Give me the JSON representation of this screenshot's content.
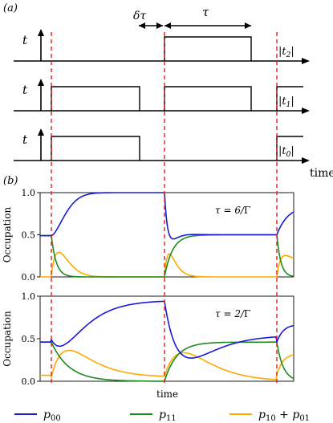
{
  "chart_data": [
    {
      "type": "line",
      "panel_label": "(a)",
      "description_text": "pulse timing diagram",
      "annotations": {
        "delta_tau": "δτ",
        "tau": "τ"
      },
      "xlabel": "time",
      "rows": [
        {
          "axis_letter": "t",
          "label": "|t2|",
          "label_main": "|t",
          "label_sub": "2",
          "label_end": "|",
          "pulses": [
            [
              0.0,
              0.0
            ]
          ],
          "high_start": 205,
          "high_end": 313,
          "marker_start": false
        },
        {
          "axis_letter": "t",
          "label": "|t1|",
          "label_main": "|t",
          "label_sub": "1",
          "label_end": "|",
          "pulses": [
            [
              1,
              1
            ]
          ],
          "marker_start": true
        },
        {
          "axis_letter": "t",
          "label": "|t0|",
          "label_main": "|t",
          "label_sub": "0",
          "label_end": "|",
          "pulses": [
            [
              1,
              1
            ]
          ],
          "marker_start": true
        }
      ]
    },
    {
      "type": "line",
      "panel_label": "(b)",
      "ylabel": "Occupation",
      "annotation": "τ = 6/Γ",
      "annotation_parts": {
        "left": "τ = 6/",
        "right": "Γ"
      },
      "ylim": [
        0,
        1
      ],
      "yticks": [
        "0.0",
        "0.5",
        "1.0"
      ],
      "series": [
        {
          "name": "p00",
          "values": [
            0.5,
            0.5,
            0.98,
            1.0,
            1.0,
            0.3,
            0.48,
            0.5,
            0.5,
            0.8
          ]
        },
        {
          "name": "p11",
          "values": [
            0.5,
            0.0,
            0.0,
            0.0,
            0.0,
            0.45,
            0.5,
            0.5,
            0.5,
            0.0
          ]
        },
        {
          "name": "p10 + p01",
          "values": [
            0.0,
            0.3,
            0.02,
            0.0,
            0.0,
            0.3,
            0.02,
            0.0,
            0.0,
            0.3
          ]
        }
      ]
    },
    {
      "type": "line",
      "ylabel": "Occupation",
      "xlabel": "time",
      "annotation": "τ = 2/Γ",
      "annotation_parts": {
        "left": "τ = 2/",
        "right": "Γ"
      },
      "ylim": [
        0,
        1
      ],
      "yticks": [
        "0.0",
        "0.5",
        "1.0"
      ],
      "series": [
        {
          "name": "p00",
          "values": [
            0.46,
            0.47,
            0.75,
            0.95,
            0.3,
            0.45,
            0.47,
            0.58
          ]
        },
        {
          "name": "p11",
          "values": [
            0.46,
            0.2,
            0.0,
            0.0,
            0.37,
            0.44,
            0.46,
            0.09
          ]
        },
        {
          "name": "p10 + p01",
          "values": [
            0.07,
            0.33,
            0.2,
            0.06,
            0.33,
            0.1,
            0.08,
            0.33
          ]
        }
      ]
    }
  ],
  "legend": [
    {
      "name": "p00",
      "main": "p",
      "sub": "00",
      "color": "#1a1ad6"
    },
    {
      "name": "p11",
      "main": "p",
      "sub": "11",
      "color": "#1f8a1f"
    },
    {
      "name": "p10 + p01",
      "main": "p",
      "sub": "10",
      "plus": " + ",
      "main2": "p",
      "sub2": "01",
      "color": "#ffa800"
    }
  ],
  "colors": {
    "blue": "#1a1ad6",
    "green": "#1f8a1f",
    "orange": "#ffa800",
    "marker": "#e0201a"
  }
}
